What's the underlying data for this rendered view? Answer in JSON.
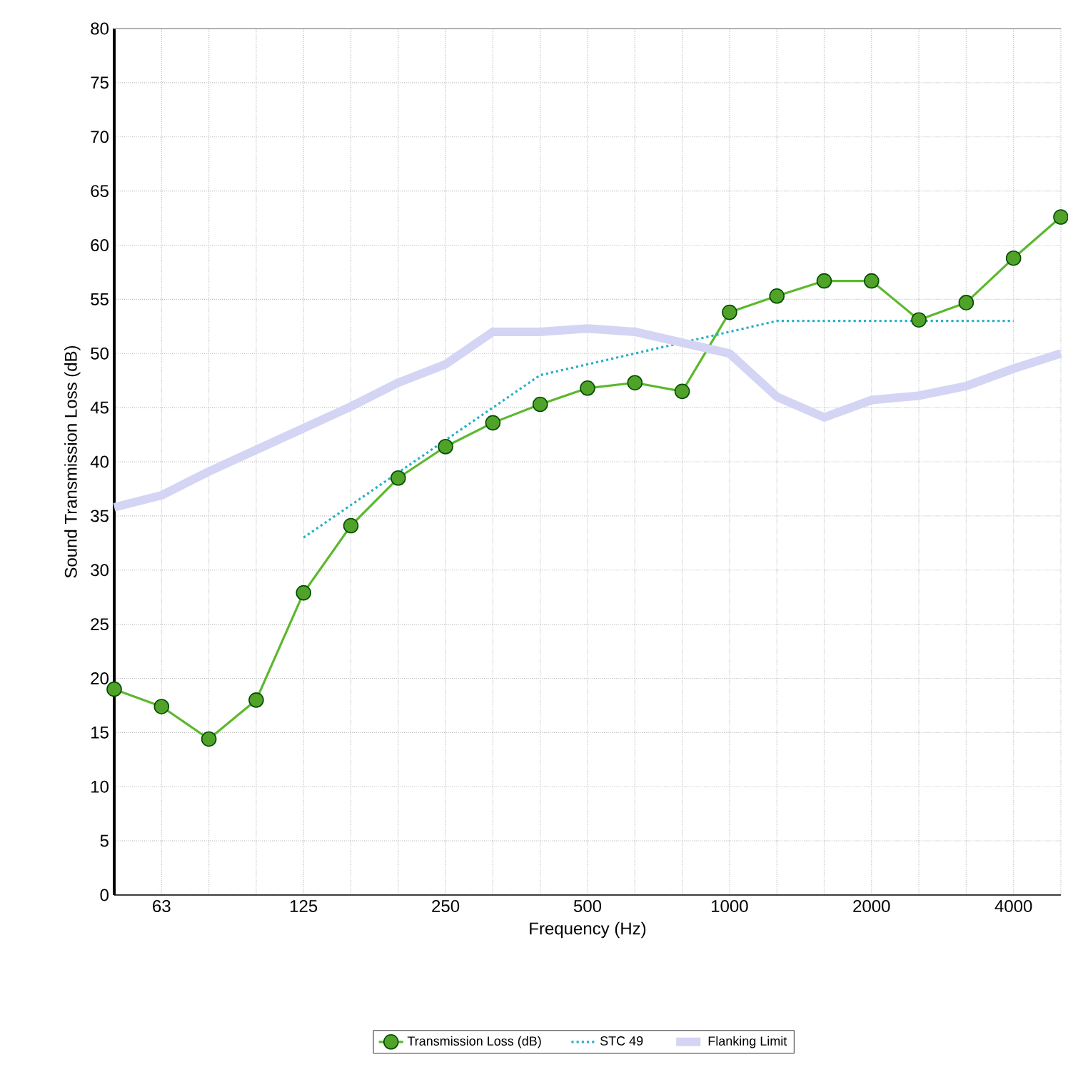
{
  "chart_data": {
    "type": "line",
    "xlabel": "Frequency (Hz)",
    "ylabel": "Sound Transmission Loss (dB)",
    "categories": [
      null,
      "63",
      null,
      null,
      "125",
      null,
      null,
      "250",
      null,
      null,
      "500",
      null,
      null,
      "1000",
      null,
      null,
      "2000",
      null,
      null,
      "4000",
      null
    ],
    "series": [
      {
        "name": "Transmission Loss (dB)",
        "color": "#5cb82e",
        "marker": "circle",
        "line_style": "solid",
        "values": [
          19.0,
          17.4,
          14.4,
          18.0,
          27.9,
          34.1,
          38.5,
          41.4,
          43.6,
          45.3,
          46.8,
          47.3,
          46.5,
          53.8,
          55.3,
          56.7,
          56.7,
          53.1,
          54.7,
          58.8,
          62.6
        ]
      },
      {
        "name": "STC 49",
        "color": "#2ab0c8",
        "marker": "none",
        "line_style": "dotted",
        "values": [
          null,
          null,
          null,
          null,
          33,
          36,
          39,
          42,
          45,
          48,
          49,
          50,
          51,
          52,
          53,
          53,
          53,
          53,
          53,
          53,
          null
        ]
      },
      {
        "name": "Flanking Limit",
        "color": "#d4d4f4",
        "marker": "none",
        "line_style": "solid",
        "values": [
          35.8,
          36.9,
          39.1,
          41.1,
          43.1,
          45.1,
          47.3,
          49,
          52,
          52,
          52.3,
          52,
          51,
          50,
          46,
          44.1,
          45.7,
          46.1,
          47,
          48.6,
          50
        ]
      }
    ],
    "ylim": [
      0,
      80
    ],
    "yticks": [
      0,
      5,
      10,
      15,
      20,
      25,
      30,
      35,
      40,
      45,
      50,
      55,
      60,
      65,
      70,
      75,
      80
    ],
    "grid": true,
    "legend": "bottom"
  }
}
